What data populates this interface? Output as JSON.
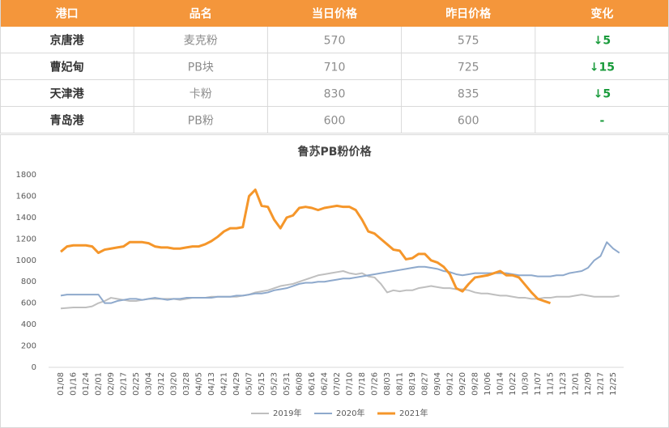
{
  "table": {
    "header": [
      "港口",
      "品名",
      "当日价格",
      "昨日价格",
      "变化"
    ],
    "rows": [
      [
        "京唐港",
        "麦克粉",
        570,
        575,
        "↓5"
      ],
      [
        "曹妃甸",
        "PB块",
        710,
        725,
        "↓15"
      ],
      [
        "天津港",
        "卡粉",
        830,
        835,
        "↓5"
      ],
      [
        "青岛港",
        "PB粉",
        600,
        600,
        "-"
      ]
    ]
  },
  "chart_data": {
    "type": "line",
    "title": "鲁苏PB粉价格",
    "categories": [
      "01/08",
      null,
      "01/16",
      null,
      "01/24",
      null,
      "02/01",
      null,
      "02/09",
      null,
      "02/17",
      null,
      "02/25",
      null,
      "03/04",
      null,
      "03/12",
      null,
      "03/20",
      null,
      "03/28",
      null,
      "04/05",
      null,
      "04/13",
      null,
      "04/21",
      null,
      "04/29",
      null,
      "05/07",
      null,
      "05/15",
      null,
      "05/23",
      null,
      "05/31",
      null,
      "06/08",
      null,
      "06/16",
      null,
      "06/24",
      null,
      "07/02",
      null,
      "07/10",
      null,
      "07/18",
      null,
      "07/26",
      null,
      "08/03",
      null,
      "08/11",
      null,
      "08/19",
      null,
      "08/27",
      null,
      "09/04",
      null,
      "09/12",
      null,
      "09/20",
      null,
      "09/28",
      null,
      "10/06",
      null,
      "10/14",
      null,
      "10/22",
      null,
      "10/30",
      null,
      "11/07",
      null,
      "11/15",
      null,
      "11/23",
      null,
      "12/01",
      null,
      "12/09",
      null,
      "12/17",
      null,
      "12/25",
      null
    ],
    "series": [
      {
        "name": "2019年",
        "color": "#bfbfbf",
        "values": [
          550,
          555,
          560,
          560,
          560,
          570,
          600,
          620,
          650,
          640,
          630,
          620,
          620,
          630,
          640,
          640,
          640,
          640,
          640,
          630,
          640,
          650,
          650,
          650,
          660,
          660,
          660,
          660,
          660,
          670,
          680,
          700,
          710,
          720,
          740,
          760,
          770,
          780,
          800,
          820,
          840,
          860,
          870,
          880,
          890,
          900,
          880,
          870,
          880,
          850,
          840,
          780,
          700,
          720,
          710,
          720,
          720,
          740,
          750,
          760,
          750,
          740,
          740,
          730,
          730,
          720,
          700,
          690,
          690,
          680,
          670,
          670,
          660,
          650,
          650,
          640,
          640,
          650,
          650,
          660,
          660,
          660,
          670,
          680,
          670,
          660,
          660,
          660,
          660,
          670
        ]
      },
      {
        "name": "2020年",
        "color": "#8ea9cc",
        "values": [
          670,
          680,
          680,
          680,
          680,
          680,
          680,
          600,
          600,
          620,
          630,
          640,
          640,
          630,
          640,
          650,
          640,
          630,
          640,
          640,
          650,
          650,
          650,
          650,
          650,
          660,
          660,
          660,
          670,
          670,
          680,
          690,
          690,
          700,
          720,
          730,
          740,
          760,
          780,
          790,
          790,
          800,
          800,
          810,
          820,
          830,
          830,
          840,
          850,
          860,
          870,
          880,
          890,
          900,
          910,
          920,
          930,
          940,
          940,
          930,
          920,
          900,
          890,
          870,
          860,
          870,
          880,
          880,
          880,
          880,
          880,
          880,
          870,
          860,
          860,
          860,
          850,
          850,
          850,
          860,
          860,
          880,
          890,
          900,
          930,
          1000,
          1040,
          1170,
          1110,
          1070
        ]
      },
      {
        "name": "2021年",
        "color": "#f5962a",
        "values": [
          1080,
          1130,
          1140,
          1140,
          1140,
          1130,
          1070,
          1100,
          1110,
          1120,
          1130,
          1170,
          1170,
          1170,
          1160,
          1130,
          1120,
          1120,
          1110,
          1110,
          1120,
          1130,
          1130,
          1150,
          1180,
          1220,
          1270,
          1300,
          1300,
          1310,
          1600,
          1660,
          1510,
          1500,
          1380,
          1300,
          1400,
          1420,
          1490,
          1500,
          1490,
          1470,
          1490,
          1500,
          1510,
          1500,
          1500,
          1470,
          1380,
          1270,
          1250,
          1200,
          1150,
          1100,
          1090,
          1010,
          1020,
          1060,
          1060,
          1000,
          980,
          940,
          870,
          740,
          710,
          780,
          840,
          850,
          860,
          880,
          900,
          860,
          860,
          840,
          770,
          700,
          640,
          620,
          600,
          null,
          null,
          null,
          null,
          null,
          null,
          null,
          null,
          null,
          null,
          null
        ]
      }
    ],
    "ylim": [
      0,
      1800
    ],
    "yticks": [
      0,
      200,
      400,
      600,
      800,
      1000,
      1200,
      1400,
      1600,
      1800
    ],
    "grid": false
  }
}
